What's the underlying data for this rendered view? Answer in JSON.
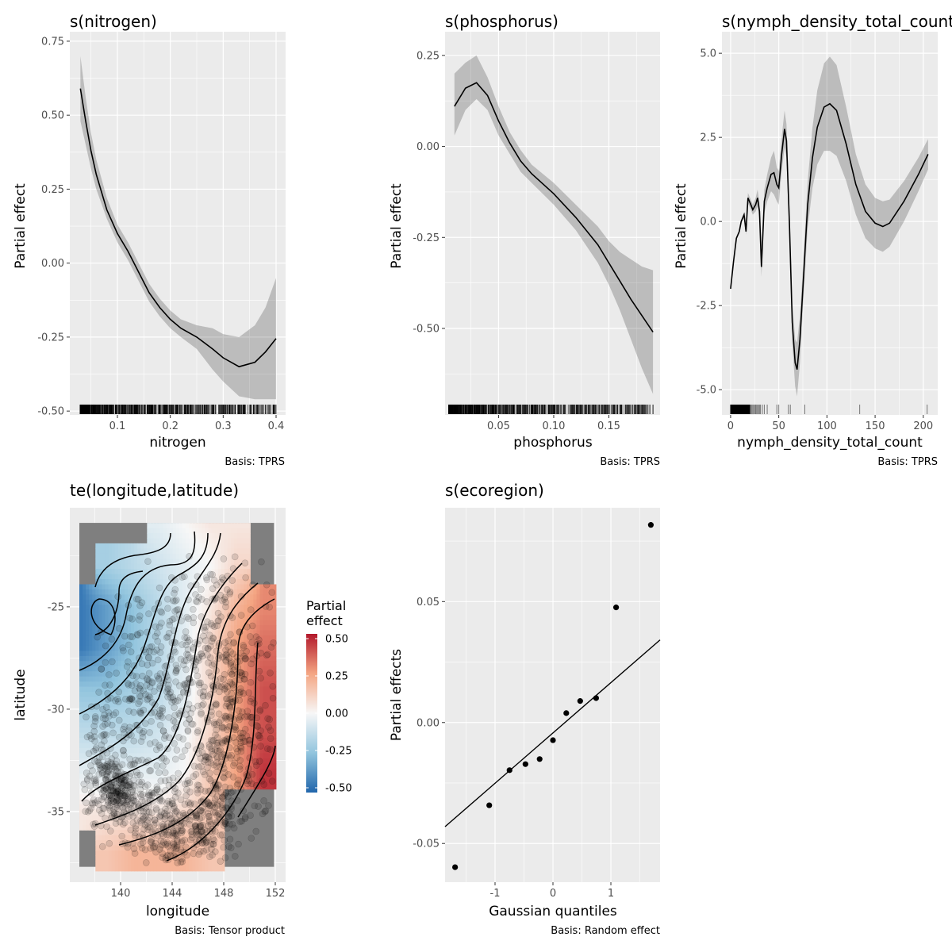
{
  "chart_data": [
    {
      "type": "line",
      "title": "s(nitrogen)",
      "xlabel": "nitrogen",
      "ylabel": "Partial effect",
      "caption": "Basis: TPRS",
      "xlim": [
        0.01,
        0.418
      ],
      "ylim": [
        -0.513,
        0.782
      ],
      "x_ticks": [
        0.1,
        0.2,
        0.3,
        0.4
      ],
      "x_tick_labels": [
        "0.1",
        "0.2",
        "0.3",
        "0.4"
      ],
      "y_ticks": [
        -0.5,
        -0.25,
        0,
        0.25,
        0.5,
        0.75
      ],
      "y_tick_labels": [
        "-0.50",
        "-0.25",
        "0.00",
        "0.25",
        "0.50",
        "0.75"
      ],
      "grid": true,
      "x": [
        0.03,
        0.04,
        0.05,
        0.06,
        0.08,
        0.1,
        0.12,
        0.14,
        0.16,
        0.18,
        0.2,
        0.22,
        0.25,
        0.28,
        0.3,
        0.33,
        0.36,
        0.38,
        0.4
      ],
      "y": [
        0.59,
        0.48,
        0.38,
        0.3,
        0.18,
        0.1,
        0.04,
        -0.03,
        -0.1,
        -0.15,
        -0.19,
        -0.22,
        -0.25,
        -0.29,
        -0.32,
        -0.35,
        -0.335,
        -0.3,
        -0.255
      ],
      "lower": [
        0.48,
        0.4,
        0.32,
        0.25,
        0.15,
        0.07,
        0.01,
        -0.06,
        -0.13,
        -0.18,
        -0.22,
        -0.25,
        -0.29,
        -0.36,
        -0.4,
        -0.45,
        -0.46,
        -0.46,
        -0.46
      ],
      "upper": [
        0.7,
        0.56,
        0.44,
        0.35,
        0.22,
        0.13,
        0.07,
        0.0,
        -0.07,
        -0.12,
        -0.16,
        -0.19,
        -0.21,
        -0.22,
        -0.24,
        -0.25,
        -0.21,
        -0.15,
        -0.05
      ],
      "rug_range": [
        0.03,
        0.4
      ]
    },
    {
      "type": "line",
      "title": "s(phosphorus)",
      "xlabel": "phosphorus",
      "ylabel": "Partial effect",
      "caption": "Basis: TPRS",
      "xlim": [
        0.0015,
        0.1964
      ],
      "ylim": [
        -0.7375,
        0.315
      ],
      "x_ticks": [
        0.05,
        0.1,
        0.15
      ],
      "x_tick_labels": [
        "0.05",
        "0.10",
        "0.15"
      ],
      "y_ticks": [
        -0.5,
        -0.25,
        0,
        0.25
      ],
      "y_tick_labels": [
        "-0.50",
        "-0.25",
        "0.00",
        "0.25"
      ],
      "grid": true,
      "x": [
        0.01,
        0.02,
        0.03,
        0.04,
        0.05,
        0.06,
        0.07,
        0.08,
        0.1,
        0.12,
        0.14,
        0.15,
        0.16,
        0.17,
        0.18,
        0.19
      ],
      "y": [
        0.11,
        0.16,
        0.175,
        0.14,
        0.07,
        0.01,
        -0.04,
        -0.075,
        -0.13,
        -0.195,
        -0.27,
        -0.32,
        -0.37,
        -0.42,
        -0.465,
        -0.51
      ],
      "lower": [
        0.03,
        0.1,
        0.13,
        0.1,
        0.03,
        -0.02,
        -0.07,
        -0.1,
        -0.16,
        -0.23,
        -0.32,
        -0.38,
        -0.45,
        -0.53,
        -0.61,
        -0.68
      ],
      "upper": [
        0.2,
        0.23,
        0.25,
        0.19,
        0.11,
        0.04,
        -0.01,
        -0.05,
        -0.1,
        -0.16,
        -0.22,
        -0.26,
        -0.29,
        -0.31,
        -0.33,
        -0.34
      ],
      "rug_range": [
        0.005,
        0.19
      ]
    },
    {
      "type": "line",
      "title": "s(nymph_density_total_count)",
      "xlabel": "nymph_density_total_count",
      "ylabel": "Partial effect",
      "caption": "Basis: TPRS",
      "xlim": [
        -9,
        215
      ],
      "ylim": [
        -5.75,
        5.64
      ],
      "x_ticks": [
        0,
        50,
        100,
        150,
        200
      ],
      "x_tick_labels": [
        "0",
        "50",
        "100",
        "150",
        "200"
      ],
      "y_ticks": [
        -5,
        -2.5,
        0,
        2.5,
        5
      ],
      "y_tick_labels": [
        "-5.0",
        "-2.5",
        "0.0",
        "2.5",
        "5.0"
      ],
      "grid": true,
      "x": [
        0,
        3,
        6,
        9,
        11,
        14,
        16,
        18,
        21,
        23,
        26,
        28,
        30,
        32,
        35,
        38,
        42,
        45,
        48,
        50,
        53,
        56,
        58,
        61,
        64,
        67,
        69,
        72,
        76,
        80,
        85,
        90,
        97,
        103,
        110,
        120,
        130,
        140,
        150,
        158,
        165,
        180,
        195,
        205
      ],
      "y": [
        -2.0,
        -1.2,
        -0.5,
        -0.3,
        0.0,
        0.2,
        -0.3,
        0.7,
        0.5,
        0.35,
        0.5,
        0.7,
        0.3,
        -1.35,
        0.6,
        1.0,
        1.4,
        1.45,
        1.1,
        1.0,
        2.0,
        2.75,
        2.4,
        0.0,
        -3.0,
        -4.2,
        -4.4,
        -3.5,
        -1.5,
        0.5,
        1.9,
        2.8,
        3.4,
        3.5,
        3.3,
        2.3,
        1.1,
        0.3,
        -0.05,
        -0.15,
        -0.05,
        0.6,
        1.4,
        2.0
      ],
      "ci_halfwidth": [
        0.05,
        0.05,
        0.05,
        0.05,
        0.05,
        0.08,
        0.1,
        0.15,
        0.15,
        0.15,
        0.2,
        0.25,
        0.25,
        0.3,
        0.35,
        0.4,
        0.5,
        0.65,
        0.5,
        0.5,
        0.5,
        0.55,
        0.5,
        0.5,
        0.6,
        0.7,
        0.8,
        0.7,
        0.6,
        0.7,
        0.9,
        1.1,
        1.3,
        1.4,
        1.35,
        1.1,
        0.9,
        0.8,
        0.75,
        0.75,
        0.7,
        0.6,
        0.5,
        0.45
      ],
      "rug_dense_range": [
        0,
        20
      ],
      "rug": [
        21,
        22,
        23,
        24,
        25,
        26,
        27,
        28,
        29,
        30,
        31,
        33,
        35,
        38,
        48,
        50,
        60,
        62,
        77,
        134,
        204
      ]
    },
    {
      "type": "heatmap",
      "title": "te(longitude,latitude)",
      "xlabel": "longitude",
      "ylabel": "latitude",
      "caption": "Basis: Tensor product",
      "xlim": [
        136.06,
        152.8
      ],
      "ylim": [
        -38.45,
        -20.16
      ],
      "x_ticks": [
        140,
        144,
        148,
        152
      ],
      "x_tick_labels": [
        "140",
        "144",
        "148",
        "152"
      ],
      "y_ticks": [
        -35,
        -30,
        -25
      ],
      "y_tick_labels": [
        "-35",
        "-30",
        "-25"
      ],
      "grid": true,
      "grid_lon": [
        137,
        139,
        141,
        143,
        145,
        147,
        149,
        151
      ],
      "grid_lat": [
        -21,
        -23,
        -25,
        -27,
        -29,
        -31,
        -33,
        -35,
        -37
      ],
      "values": [
        [
          null,
          null,
          null,
          -0.05,
          0.0,
          0.05,
          0.05,
          null
        ],
        [
          null,
          -0.2,
          -0.15,
          -0.1,
          -0.05,
          0.0,
          0.1,
          null
        ],
        [
          -0.45,
          -0.35,
          -0.25,
          -0.15,
          -0.05,
          0.05,
          0.2,
          0.3
        ],
        [
          -0.45,
          -0.35,
          -0.25,
          -0.15,
          -0.05,
          0.1,
          0.25,
          0.35
        ],
        [
          -0.25,
          -0.25,
          -0.2,
          -0.15,
          -0.05,
          0.1,
          0.25,
          0.4
        ],
        [
          -0.15,
          -0.15,
          -0.15,
          -0.1,
          -0.02,
          0.1,
          0.25,
          0.4
        ],
        [
          -0.05,
          -0.05,
          -0.05,
          -0.05,
          0.0,
          0.15,
          0.25,
          0.45
        ],
        [
          0.05,
          0.05,
          0.05,
          0.05,
          0.1,
          0.15,
          null,
          null
        ],
        [
          null,
          0.15,
          0.2,
          0.2,
          0.2,
          0.15,
          null,
          null
        ]
      ],
      "na_color": "#7F7F7F",
      "legend": {
        "title_line1": "Partial",
        "title_line2": "effect",
        "position": "right",
        "range": [
          -0.5,
          0.5
        ],
        "ticks": [
          0.5,
          0.25,
          0,
          -0.25,
          -0.5
        ],
        "tick_labels": [
          "0.50",
          "0.25",
          "0.00",
          "-0.25",
          "-0.50"
        ],
        "colors": [
          "#2166AC",
          "#92C5DE",
          "#F7F7F7",
          "#F4A582",
          "#B2182B"
        ]
      }
    },
    {
      "type": "scatter",
      "title": "s(ecoregion)",
      "xlabel": "Gaussian quantiles",
      "ylabel": "Partial effects",
      "caption": "Basis: Random effect",
      "xlim": [
        -1.863,
        1.849
      ],
      "ylim": [
        -0.066,
        0.0888
      ],
      "x_ticks": [
        -1,
        0,
        1
      ],
      "x_tick_labels": [
        "-1",
        "0",
        "1"
      ],
      "y_ticks": [
        -0.05,
        0,
        0.05
      ],
      "y_tick_labels": [
        "-0.05",
        "0.00",
        "0.05"
      ],
      "grid": true,
      "x": [
        -1.69,
        -1.1,
        -0.75,
        -0.475,
        -0.23,
        0.0,
        0.23,
        0.47,
        0.745,
        1.09,
        1.69
      ],
      "y": [
        -0.0598,
        -0.0342,
        -0.0197,
        -0.0172,
        -0.0151,
        -0.0073,
        0.0039,
        0.0089,
        0.0101,
        0.0476,
        0.0817
      ],
      "reference_line": {
        "intercept": -0.0043,
        "slope": 0.0208
      }
    }
  ]
}
